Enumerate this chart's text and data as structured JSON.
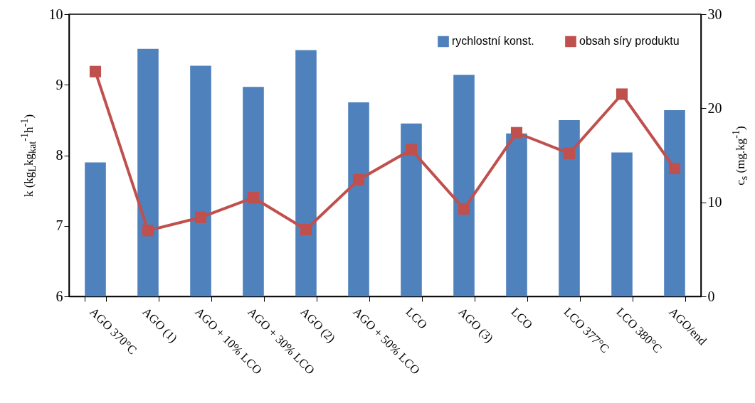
{
  "chart_data": {
    "type": "bar",
    "categories": [
      "AGO 370°C",
      "AGO (1)",
      "AGO + 10% LCO",
      "AGO + 30% LCO",
      "AGO (2)",
      "AGO + 50% LCO",
      "LCO",
      "AGO (3)",
      "LCO",
      "LCO 377°C",
      "LCO 380°C",
      "AGO/end"
    ],
    "series": [
      {
        "name": "rychlostní konst.",
        "color": "#4f81bd",
        "values": [
          7.9,
          9.51,
          9.27,
          8.97,
          9.49,
          8.75,
          8.45,
          9.14,
          8.31,
          8.5,
          8.04,
          8.64
        ]
      },
      {
        "name": "obsah síry produktu",
        "type": "line",
        "axis": "y2",
        "color": "#c0504d",
        "marker": "square",
        "line_style": "solid",
        "values": [
          23.9,
          7.0,
          8.4,
          10.5,
          7.1,
          12.4,
          15.6,
          9.3,
          17.4,
          15.2,
          21.5,
          13.6
        ]
      }
    ],
    "ylabel": "k (kg$_{L}$kg$_{kat}$$^{-1}$h$^{-1}$)",
    "y2label": "c$_{s}$ (mg.kg$^{-1}$)",
    "ylim": [
      6,
      10
    ],
    "yticks": [
      6,
      7,
      8,
      9,
      10
    ],
    "y2lim": [
      0,
      30
    ],
    "y2ticks": [
      0,
      10,
      20,
      30
    ],
    "legend": "top right",
    "grid": false
  }
}
